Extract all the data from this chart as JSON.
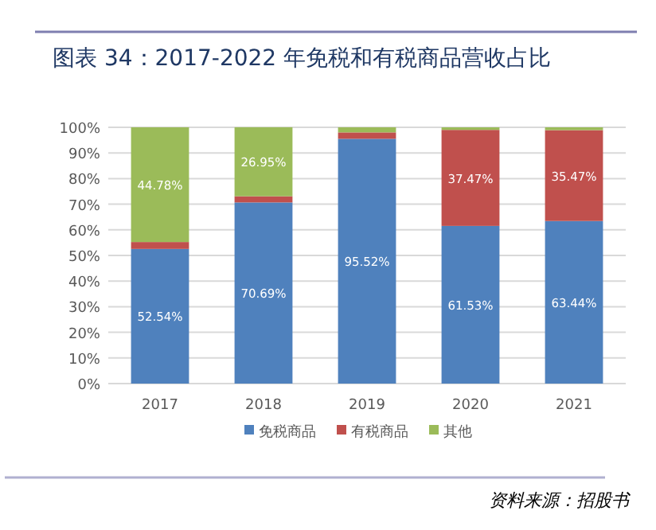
{
  "chart_data": {
    "type": "bar",
    "stacked": true,
    "title": "图表 34：2017-2022 年免税和有税商品营收占比",
    "categories": [
      "2017",
      "2018",
      "2019",
      "2020",
      "2021"
    ],
    "series": [
      {
        "name": "免税商品",
        "color": "#4f81bd",
        "values": [
          52.54,
          70.69,
          95.52,
          61.53,
          63.44
        ],
        "value_labels": [
          "52.54%",
          "70.69%",
          "95.52%",
          "61.53%",
          "63.44%"
        ]
      },
      {
        "name": "有税商品",
        "color": "#c0504d",
        "values": [
          2.7,
          2.4,
          2.5,
          37.47,
          35.47
        ],
        "value_labels": [
          null,
          null,
          null,
          "37.47%",
          "35.47%"
        ]
      },
      {
        "name": "其他",
        "color": "#9bbb59",
        "values": [
          44.78,
          26.95,
          2.0,
          1.0,
          1.1
        ],
        "value_labels": [
          "44.78%",
          "26.95%",
          null,
          null,
          null
        ]
      }
    ],
    "ylim": [
      0,
      100
    ],
    "yticks": [
      {
        "value": 0,
        "label": "0%"
      },
      {
        "value": 10,
        "label": "10%"
      },
      {
        "value": 20,
        "label": "20%"
      },
      {
        "value": 30,
        "label": "30%"
      },
      {
        "value": 40,
        "label": "40%"
      },
      {
        "value": 50,
        "label": "50%"
      },
      {
        "value": 60,
        "label": "60%"
      },
      {
        "value": 70,
        "label": "70%"
      },
      {
        "value": 80,
        "label": "80%"
      },
      {
        "value": 90,
        "label": "90%"
      },
      {
        "value": 100,
        "label": "100%"
      }
    ],
    "grid": "y",
    "legend": "bottom",
    "annotations": [
      "资料来源：招股书"
    ]
  }
}
